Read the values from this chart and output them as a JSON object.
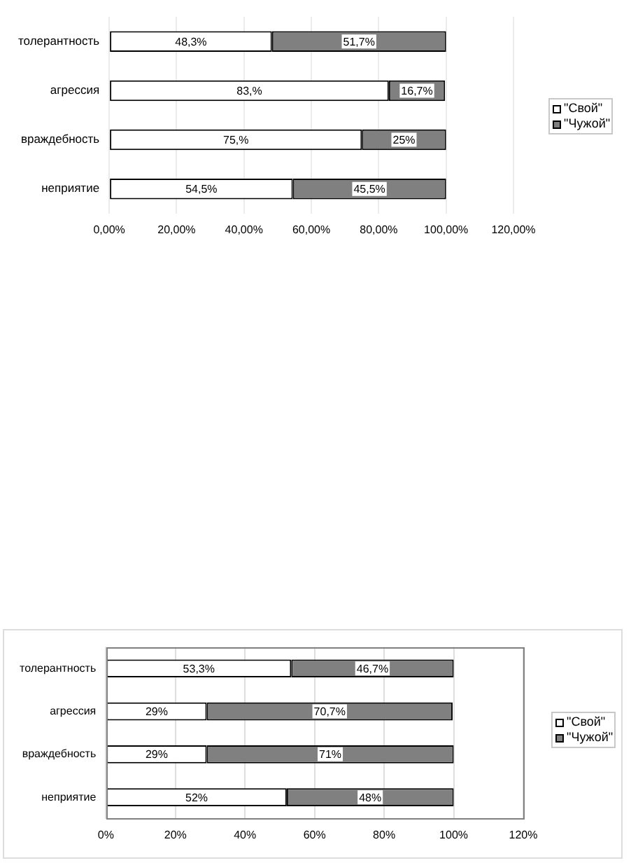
{
  "chart_data": [
    {
      "type": "bar",
      "orientation": "horizontal",
      "stacked": true,
      "categories": [
        "толерантность",
        "агрессия",
        "враждебность",
        "неприятие"
      ],
      "series": [
        {
          "name": "\"Свой\"",
          "color": "#ffffff",
          "values": [
            48.3,
            83,
            75,
            54.5
          ],
          "value_labels": [
            "48,3%",
            "83,%",
            "75,%",
            "54,5%"
          ]
        },
        {
          "name": "\"Чужой\"",
          "color": "#808080",
          "values": [
            51.7,
            16.7,
            25,
            45.5
          ],
          "value_labels": [
            "51,7%",
            "16,7%",
            "25%",
            "45,5%"
          ]
        }
      ],
      "xlim": [
        0,
        120
      ],
      "xticks": [
        {
          "value": 0,
          "label": "0,00%"
        },
        {
          "value": 20,
          "label": "20,00%"
        },
        {
          "value": 40,
          "label": "40,00%"
        },
        {
          "value": 60,
          "label": "60,00%"
        },
        {
          "value": 80,
          "label": "80,00%"
        },
        {
          "value": 100,
          "label": "100,00%"
        },
        {
          "value": 120,
          "label": "120,00%"
        }
      ],
      "grid": "x",
      "legend": "right"
    },
    {
      "type": "bar",
      "orientation": "horizontal",
      "stacked": true,
      "categories": [
        "толерантность",
        "агрессия",
        "враждебность",
        "неприятие"
      ],
      "series": [
        {
          "name": "\"Свой\"",
          "color": "#ffffff",
          "values": [
            53.3,
            29,
            29,
            52
          ],
          "value_labels": [
            "53,3%",
            "29%",
            "29%",
            "52%"
          ]
        },
        {
          "name": "\"Чужой\"",
          "color": "#808080",
          "values": [
            46.7,
            70.7,
            71,
            48
          ],
          "value_labels": [
            "46,7%",
            "70,7%",
            "71%",
            "48%"
          ]
        }
      ],
      "xlim": [
        0,
        120
      ],
      "xticks": [
        {
          "value": 0,
          "label": "0%"
        },
        {
          "value": 20,
          "label": "20%"
        },
        {
          "value": 40,
          "label": "40%"
        },
        {
          "value": 60,
          "label": "60%"
        },
        {
          "value": 80,
          "label": "80%"
        },
        {
          "value": 100,
          "label": "100%"
        },
        {
          "value": 120,
          "label": "120%"
        }
      ],
      "grid": "x",
      "legend": "right"
    }
  ]
}
